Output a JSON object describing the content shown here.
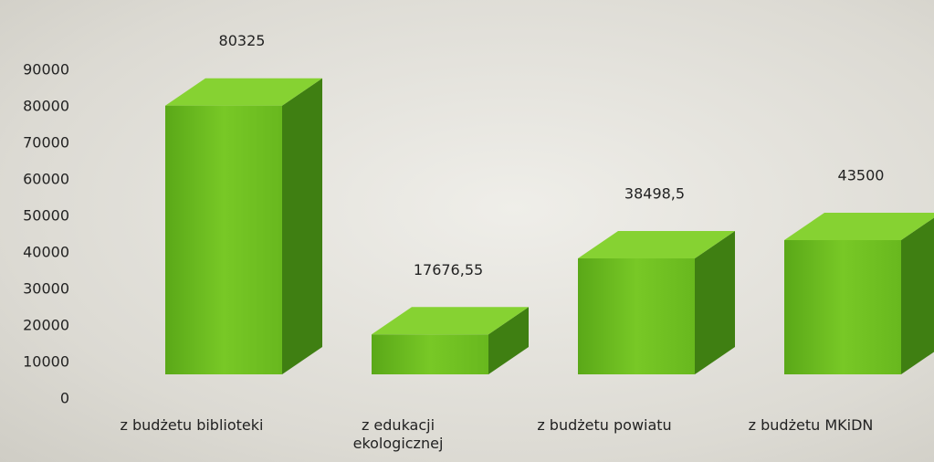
{
  "chart_data": {
    "type": "bar3d",
    "categories": [
      "z budżetu biblioteki",
      "z edukacji ekologicznej",
      "z budżetu powiatu",
      "z budżetu MKiDN"
    ],
    "values": [
      80325,
      17676.55,
      38498.5,
      43500
    ],
    "value_labels": [
      "80325",
      "17676,55",
      "38498,5",
      "43500"
    ],
    "color": "#6cbf1e",
    "ylim": [
      0,
      90000
    ],
    "yticks": [
      0,
      10000,
      20000,
      30000,
      40000,
      50000,
      60000,
      70000,
      80000,
      90000
    ],
    "grid": false
  }
}
